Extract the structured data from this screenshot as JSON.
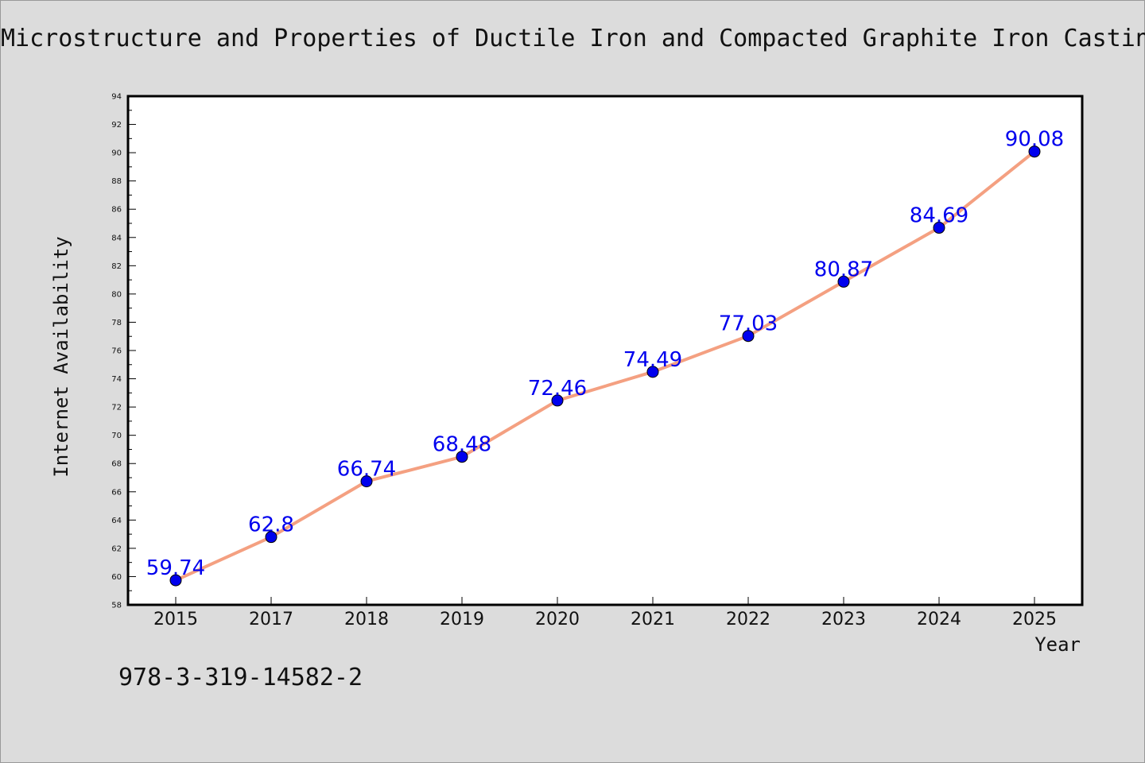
{
  "chart_data": {
    "type": "line",
    "title": "Microstructure and Properties of Ductile Iron and Compacted Graphite Iron Castings",
    "xlabel": "Year",
    "ylabel": "Internet Availability",
    "categories": [
      "2015",
      "2017",
      "2018",
      "2019",
      "2020",
      "2021",
      "2022",
      "2023",
      "2024",
      "2025"
    ],
    "series": [
      {
        "values": [
          59.74,
          62.8,
          66.74,
          68.48,
          72.46,
          74.49,
          77.03,
          80.87,
          84.69,
          90.08
        ],
        "labels": [
          "59.74",
          "62.8",
          "66.74",
          "68.48",
          "72.46",
          "74.49",
          "77.03",
          "80.87",
          "84.69",
          "90.08"
        ]
      }
    ],
    "ylim": [
      58,
      94
    ],
    "yticks": [
      "58",
      "60",
      "62",
      "64",
      "66",
      "68",
      "70",
      "72",
      "74",
      "76",
      "78",
      "80",
      "82",
      "84",
      "86",
      "88",
      "90",
      "92",
      "94"
    ],
    "grid": false,
    "line_color": "#f4a081",
    "marker_color": "#0000ee",
    "label_color": "#0000ee"
  },
  "footnote": "978-3-319-14582-2"
}
